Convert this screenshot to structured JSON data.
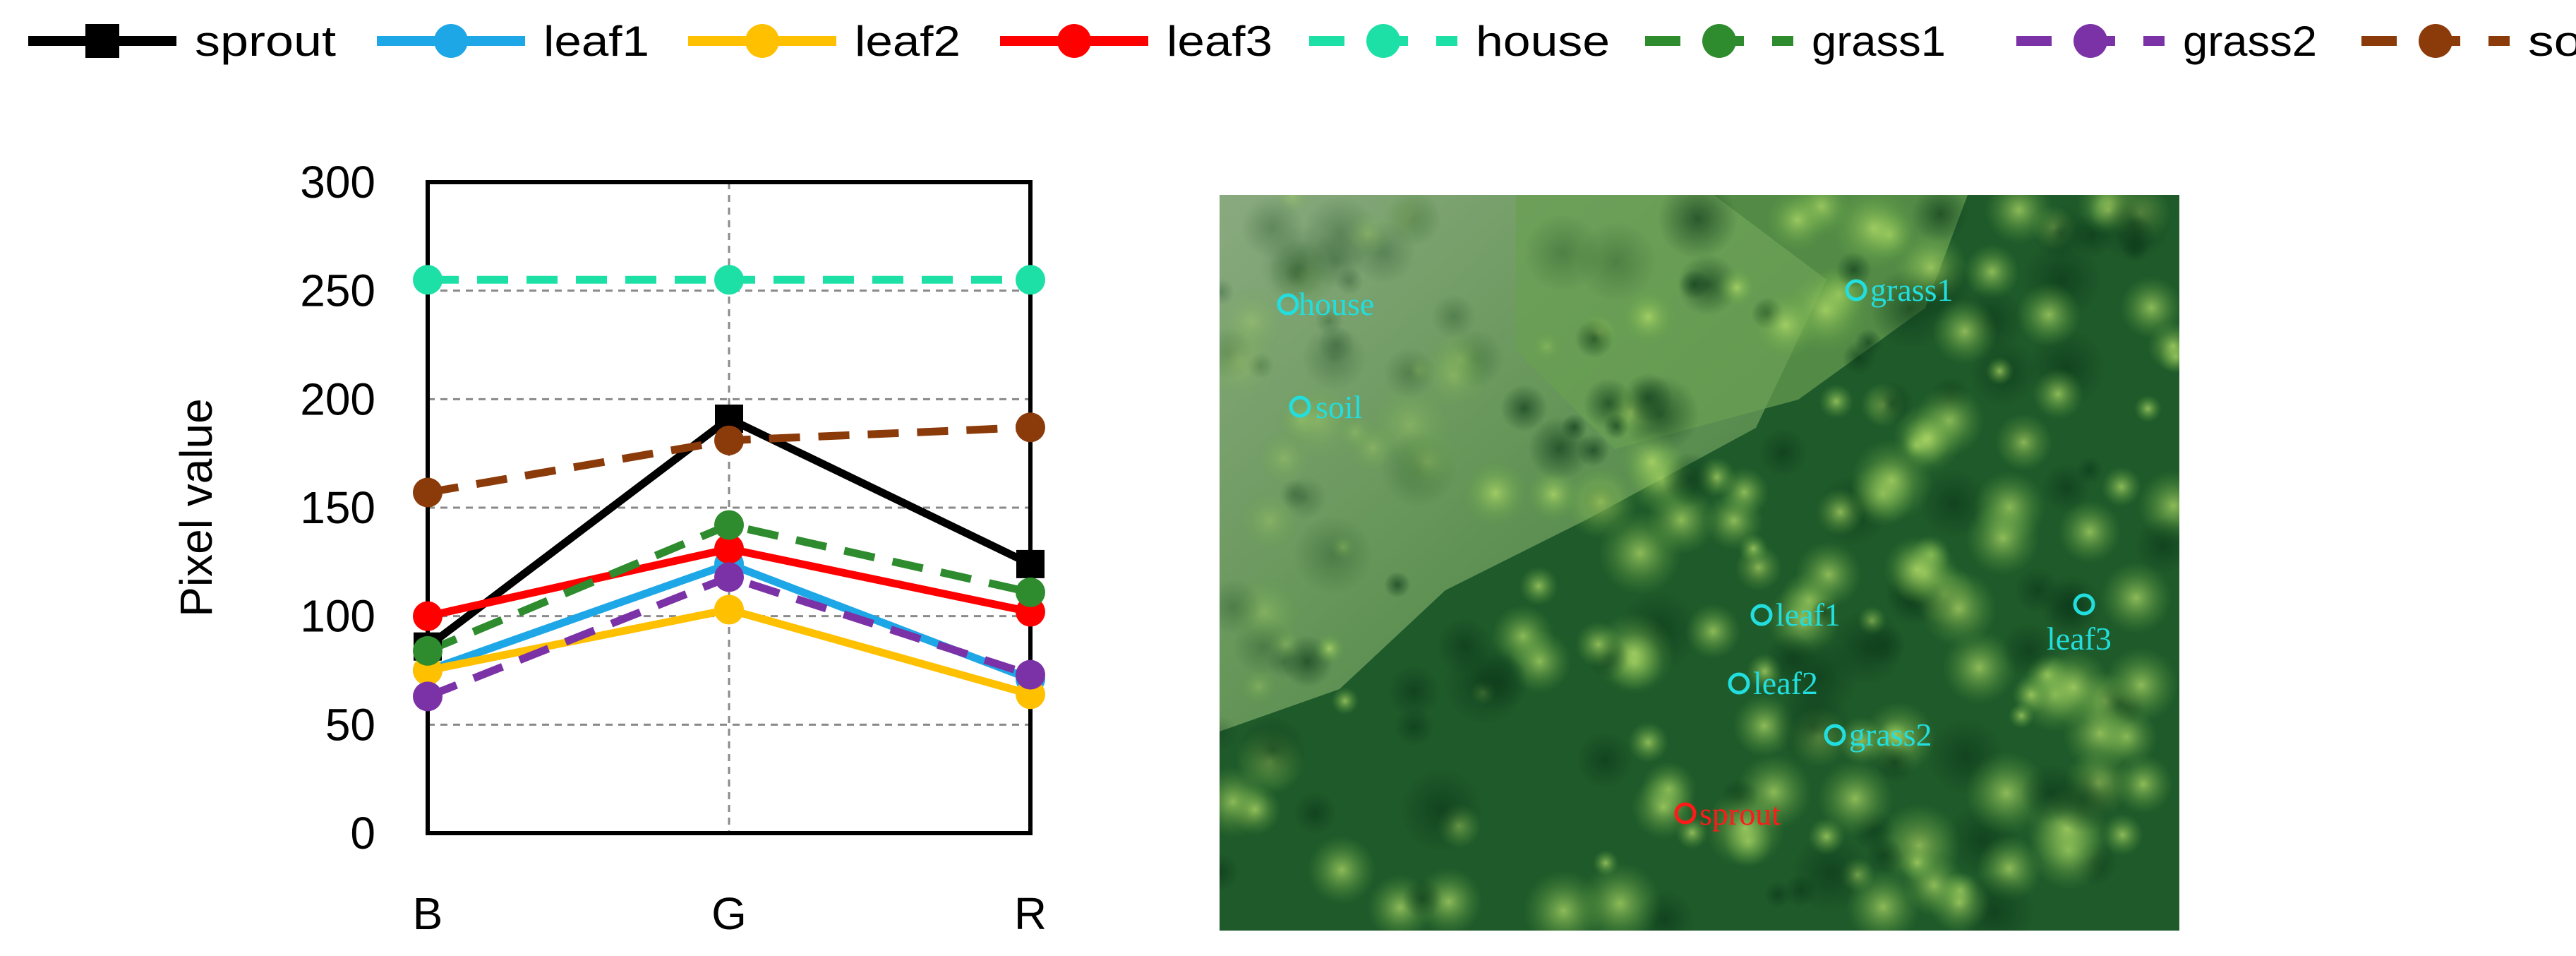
{
  "chart_data": {
    "type": "line",
    "title": "",
    "xlabel": "",
    "ylabel": "Pixel value",
    "categories": [
      "B",
      "G",
      "R"
    ],
    "ylim": [
      0,
      300
    ],
    "yticks": [
      0,
      50,
      100,
      150,
      200,
      250,
      300
    ],
    "grid": true,
    "legend_position": "top",
    "series": [
      {
        "name": "sprout",
        "values": [
          86,
          191,
          124
        ],
        "color": "#000000",
        "dashed": false,
        "marker": "square"
      },
      {
        "name": "leaf1",
        "values": [
          75,
          124,
          71
        ],
        "color": "#1ea7e6",
        "dashed": false,
        "marker": "circle"
      },
      {
        "name": "leaf2",
        "values": [
          75,
          103,
          64
        ],
        "color": "#ffc000",
        "dashed": false,
        "marker": "circle"
      },
      {
        "name": "leaf3",
        "values": [
          100,
          131,
          102
        ],
        "color": "#ff0000",
        "dashed": false,
        "marker": "circle"
      },
      {
        "name": "house",
        "values": [
          255,
          255,
          255
        ],
        "color": "#1de0a6",
        "dashed": true,
        "marker": "circle"
      },
      {
        "name": "grass1",
        "values": [
          84,
          142,
          111
        ],
        "color": "#2e8b2e",
        "dashed": true,
        "marker": "circle"
      },
      {
        "name": "grass2",
        "values": [
          63,
          118,
          73
        ],
        "color": "#7b32a6",
        "dashed": true,
        "marker": "circle"
      },
      {
        "name": "soil",
        "values": [
          157,
          181,
          187
        ],
        "color": "#8b3a0a",
        "dashed": true,
        "marker": "circle"
      }
    ]
  },
  "image_annotations": {
    "marker_color": "#22dede",
    "sprout_color": "#ff1a1a",
    "labels": [
      "house",
      "soil",
      "grass1",
      "leaf1",
      "leaf3",
      "leaf2",
      "grass2",
      "sprout"
    ]
  }
}
